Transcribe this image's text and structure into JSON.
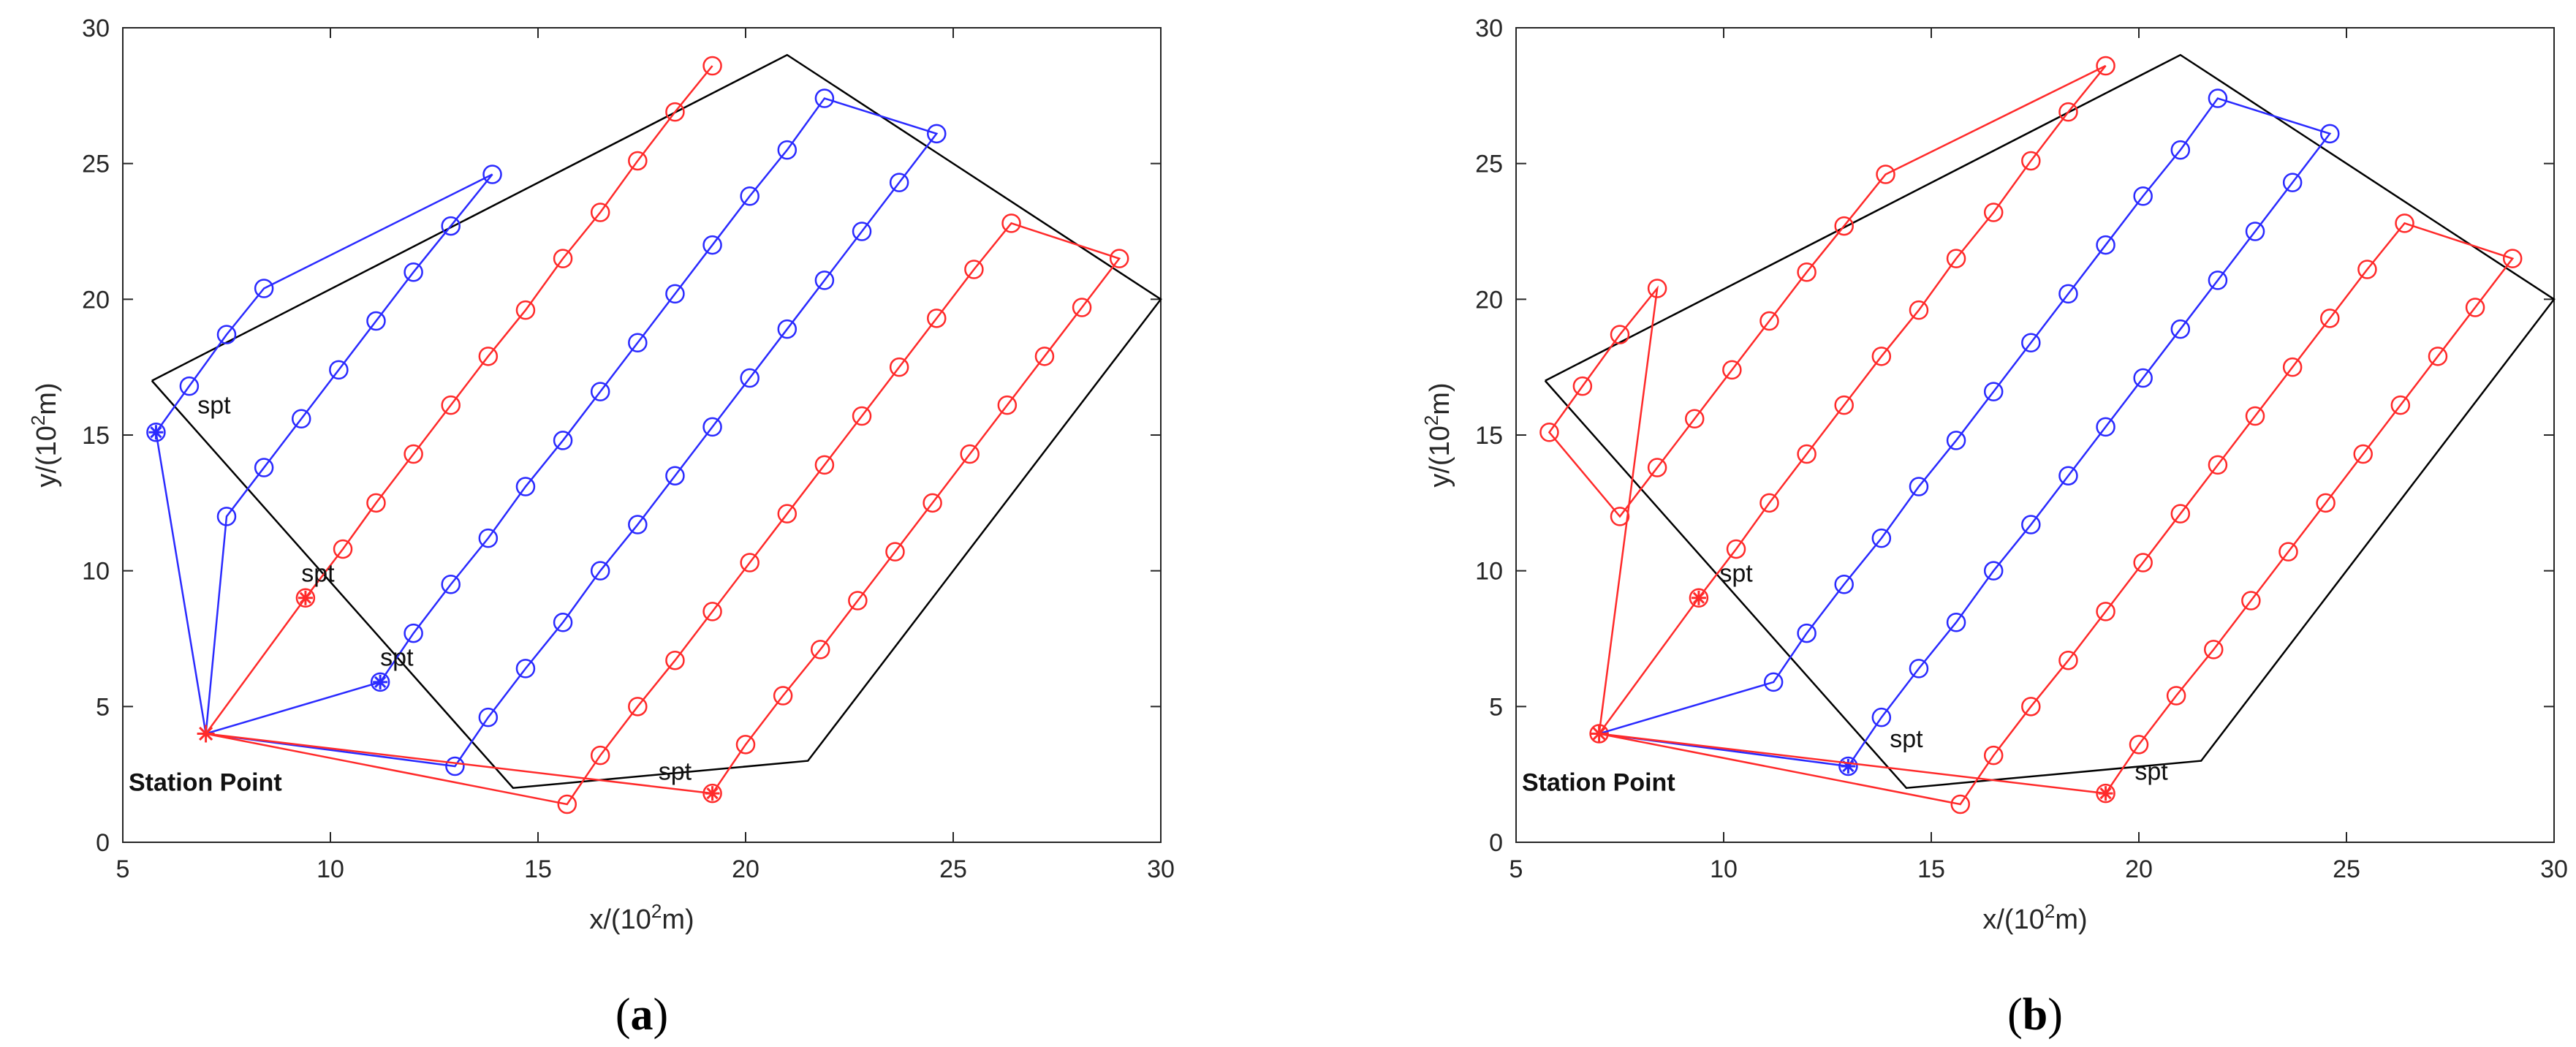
{
  "colors": {
    "red": "#ff2a2a",
    "blue": "#2a2aff",
    "black": "#000000",
    "axis": "#262626"
  },
  "chart_data": [
    {
      "type": "line",
      "panel_label": "a",
      "xlabel_base": "x/(10",
      "xlabel_exp": "2",
      "xlabel_tail": "m)",
      "ylabel_base": "y/(10",
      "ylabel_exp": "2",
      "ylabel_tail": "m)",
      "xlim": [
        5,
        30
      ],
      "ylim": [
        0,
        30
      ],
      "xticks": [
        5,
        10,
        15,
        20,
        25,
        30
      ],
      "yticks": [
        0,
        5,
        10,
        15,
        20,
        25,
        30
      ],
      "grid": false,
      "boundary": [
        [
          5.7,
          17.0
        ],
        [
          21.0,
          29.0
        ],
        [
          30.0,
          20.0
        ],
        [
          21.5,
          3.0
        ],
        [
          14.4,
          2.0
        ],
        [
          5.7,
          17.0
        ]
      ],
      "station": {
        "x": 7.0,
        "y": 4.0,
        "label": "Station Point"
      },
      "annotations": [
        {
          "text": "spt",
          "x": 6.8,
          "y": 15.8
        },
        {
          "text": "spt",
          "x": 9.3,
          "y": 9.6
        },
        {
          "text": "spt",
          "x": 11.2,
          "y": 6.5
        },
        {
          "text": "spt",
          "x": 17.9,
          "y": 2.3
        }
      ],
      "routes": [
        {
          "color": "blue",
          "start": [
            7.0,
            4.0
          ],
          "pts": [
            [
              5.8,
              15.1
            ],
            [
              6.6,
              16.8
            ],
            [
              7.5,
              18.7
            ],
            [
              8.4,
              20.4
            ],
            [
              13.9,
              24.6
            ],
            [
              12.9,
              22.7
            ],
            [
              12.0,
              21.0
            ],
            [
              11.1,
              19.2
            ],
            [
              10.2,
              17.4
            ],
            [
              9.3,
              15.6
            ],
            [
              8.4,
              13.8
            ],
            [
              7.5,
              12.0
            ]
          ],
          "end": [
            7.0,
            4.0
          ],
          "markers": "circle",
          "special": [
            5.8,
            15.1
          ]
        },
        {
          "color": "red",
          "start": [
            7.0,
            4.0
          ],
          "pts": [
            [
              9.4,
              9.0
            ],
            [
              10.3,
              10.8
            ],
            [
              11.1,
              12.5
            ],
            [
              12.0,
              14.3
            ],
            [
              12.9,
              16.1
            ],
            [
              13.8,
              17.9
            ],
            [
              14.7,
              19.6
            ],
            [
              15.6,
              21.5
            ],
            [
              16.5,
              23.2
            ],
            [
              17.4,
              25.1
            ],
            [
              18.3,
              26.9
            ],
            [
              19.2,
              28.6
            ]
          ],
          "end": null,
          "markers": "circle",
          "special": [
            9.4,
            9.0
          ]
        },
        {
          "color": "blue",
          "start": [
            7.0,
            4.0
          ],
          "pts": [
            [
              11.2,
              5.9
            ],
            [
              12.0,
              7.7
            ],
            [
              12.9,
              9.5
            ],
            [
              13.8,
              11.2
            ],
            [
              14.7,
              13.1
            ],
            [
              15.6,
              14.8
            ],
            [
              16.5,
              16.6
            ],
            [
              17.4,
              18.4
            ],
            [
              18.3,
              20.2
            ],
            [
              19.2,
              22.0
            ],
            [
              20.1,
              23.8
            ],
            [
              21.0,
              25.5
            ],
            [
              21.9,
              27.4
            ],
            [
              24.6,
              26.1
            ],
            [
              23.7,
              24.3
            ],
            [
              22.8,
              22.5
            ],
            [
              21.9,
              20.7
            ],
            [
              21.0,
              18.9
            ],
            [
              20.1,
              17.1
            ],
            [
              19.2,
              15.3
            ],
            [
              18.3,
              13.5
            ],
            [
              17.4,
              11.7
            ],
            [
              16.5,
              10.0
            ],
            [
              15.6,
              8.1
            ],
            [
              14.7,
              6.4
            ],
            [
              13.8,
              4.6
            ],
            [
              13.0,
              2.8
            ]
          ],
          "end": [
            7.0,
            4.0
          ],
          "markers": "circle",
          "special": [
            11.2,
            5.9
          ]
        },
        {
          "color": "red",
          "start": [
            7.0,
            4.0
          ],
          "pts": [
            [
              15.7,
              1.4
            ],
            [
              16.5,
              3.2
            ],
            [
              17.4,
              5.0
            ],
            [
              18.3,
              6.7
            ],
            [
              19.2,
              8.5
            ],
            [
              20.1,
              10.3
            ],
            [
              21.0,
              12.1
            ],
            [
              21.9,
              13.9
            ],
            [
              22.8,
              15.7
            ],
            [
              23.7,
              17.5
            ],
            [
              24.6,
              19.3
            ],
            [
              25.5,
              21.1
            ],
            [
              26.4,
              22.8
            ],
            [
              29.0,
              21.5
            ],
            [
              28.1,
              19.7
            ],
            [
              27.2,
              17.9
            ],
            [
              26.3,
              16.1
            ],
            [
              25.4,
              14.3
            ],
            [
              24.5,
              12.5
            ],
            [
              23.6,
              10.7
            ],
            [
              22.7,
              8.9
            ],
            [
              21.8,
              7.1
            ],
            [
              20.9,
              5.4
            ],
            [
              20.0,
              3.6
            ],
            [
              19.2,
              1.8
            ]
          ],
          "end": [
            7.0,
            4.0
          ],
          "markers": "circle",
          "special": [
            19.2,
            1.8
          ]
        }
      ]
    },
    {
      "type": "line",
      "panel_label": "b",
      "xlabel_base": "x/(10",
      "xlabel_exp": "2",
      "xlabel_tail": "m)",
      "ylabel_base": "y/(10",
      "ylabel_exp": "2",
      "ylabel_tail": "m)",
      "xlim": [
        5,
        30
      ],
      "ylim": [
        0,
        30
      ],
      "xticks": [
        5,
        10,
        15,
        20,
        25,
        30
      ],
      "yticks": [
        0,
        5,
        10,
        15,
        20,
        25,
        30
      ],
      "grid": false,
      "boundary": [
        [
          5.7,
          17.0
        ],
        [
          21.0,
          29.0
        ],
        [
          30.0,
          20.0
        ],
        [
          21.5,
          3.0
        ],
        [
          14.4,
          2.0
        ],
        [
          5.7,
          17.0
        ]
      ],
      "station": {
        "x": 7.0,
        "y": 4.0,
        "label": "Station Point"
      },
      "annotations": [
        {
          "text": "spt",
          "x": 9.9,
          "y": 9.6
        },
        {
          "text": "spt",
          "x": 14.0,
          "y": 3.5
        },
        {
          "text": "spt",
          "x": 19.9,
          "y": 2.3
        }
      ],
      "routes": [
        {
          "color": "red",
          "start": [
            7.0,
            4.0
          ],
          "pts": [
            [
              9.4,
              9.0
            ],
            [
              10.3,
              10.8
            ],
            [
              11.1,
              12.5
            ],
            [
              12.0,
              14.3
            ],
            [
              12.9,
              16.1
            ],
            [
              13.8,
              17.9
            ],
            [
              14.7,
              19.6
            ],
            [
              15.6,
              21.5
            ],
            [
              16.5,
              23.2
            ],
            [
              17.4,
              25.1
            ],
            [
              18.3,
              26.9
            ],
            [
              19.2,
              28.6
            ],
            [
              13.9,
              24.6
            ],
            [
              12.9,
              22.7
            ],
            [
              12.0,
              21.0
            ],
            [
              11.1,
              19.2
            ],
            [
              10.2,
              17.4
            ],
            [
              9.3,
              15.6
            ],
            [
              8.4,
              13.8
            ],
            [
              7.5,
              12.0
            ],
            [
              5.8,
              15.1
            ],
            [
              6.6,
              16.8
            ],
            [
              7.5,
              18.7
            ],
            [
              8.4,
              20.4
            ],
            [
              7.0,
              4.0
            ]
          ],
          "end": null,
          "markers": "circle",
          "special": [
            9.4,
            9.0
          ]
        },
        {
          "color": "blue",
          "start": [
            7.0,
            4.0
          ],
          "pts": [
            [
              11.2,
              5.9
            ],
            [
              12.0,
              7.7
            ],
            [
              12.9,
              9.5
            ],
            [
              13.8,
              11.2
            ],
            [
              14.7,
              13.1
            ],
            [
              15.6,
              14.8
            ],
            [
              16.5,
              16.6
            ],
            [
              17.4,
              18.4
            ],
            [
              18.3,
              20.2
            ],
            [
              19.2,
              22.0
            ],
            [
              20.1,
              23.8
            ],
            [
              21.0,
              25.5
            ],
            [
              21.9,
              27.4
            ],
            [
              24.6,
              26.1
            ],
            [
              23.7,
              24.3
            ],
            [
              22.8,
              22.5
            ],
            [
              21.9,
              20.7
            ],
            [
              21.0,
              18.9
            ],
            [
              20.1,
              17.1
            ],
            [
              19.2,
              15.3
            ],
            [
              18.3,
              13.5
            ],
            [
              17.4,
              11.7
            ],
            [
              16.5,
              10.0
            ],
            [
              15.6,
              8.1
            ],
            [
              14.7,
              6.4
            ],
            [
              13.8,
              4.6
            ],
            [
              13.0,
              2.8
            ]
          ],
          "end": [
            7.0,
            4.0
          ],
          "markers": "circle",
          "special": [
            13.0,
            2.8
          ]
        },
        {
          "color": "red",
          "start": [
            7.0,
            4.0
          ],
          "pts": [
            [
              15.7,
              1.4
            ],
            [
              16.5,
              3.2
            ],
            [
              17.4,
              5.0
            ],
            [
              18.3,
              6.7
            ],
            [
              19.2,
              8.5
            ],
            [
              20.1,
              10.3
            ],
            [
              21.0,
              12.1
            ],
            [
              21.9,
              13.9
            ],
            [
              22.8,
              15.7
            ],
            [
              23.7,
              17.5
            ],
            [
              24.6,
              19.3
            ],
            [
              25.5,
              21.1
            ],
            [
              26.4,
              22.8
            ],
            [
              29.0,
              21.5
            ],
            [
              28.1,
              19.7
            ],
            [
              27.2,
              17.9
            ],
            [
              26.3,
              16.1
            ],
            [
              25.4,
              14.3
            ],
            [
              24.5,
              12.5
            ],
            [
              23.6,
              10.7
            ],
            [
              22.7,
              8.9
            ],
            [
              21.8,
              7.1
            ],
            [
              20.9,
              5.4
            ],
            [
              20.0,
              3.6
            ],
            [
              19.2,
              1.8
            ]
          ],
          "end": [
            7.0,
            4.0
          ],
          "markers": "circle",
          "special": [
            19.2,
            1.8
          ]
        }
      ]
    }
  ]
}
